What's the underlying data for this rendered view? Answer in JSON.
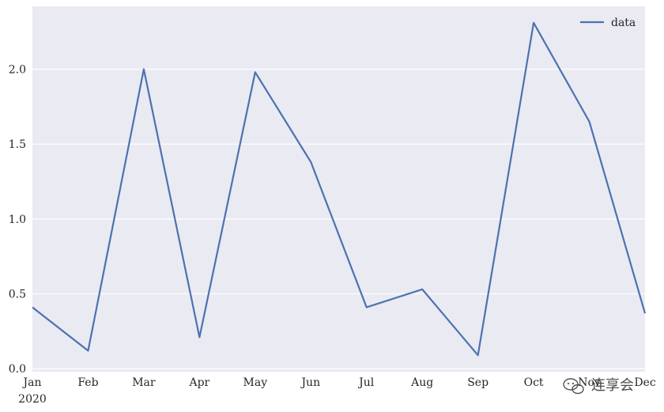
{
  "chart_data": {
    "type": "line",
    "x": [
      "Jan",
      "Feb",
      "Mar",
      "Apr",
      "May",
      "Jun",
      "Jul",
      "Aug",
      "Sep",
      "Oct",
      "Nov",
      "Dec"
    ],
    "x_year_label": "2020",
    "series": [
      {
        "name": "data",
        "color": "#4C72B0",
        "values": [
          0.41,
          0.12,
          2.0,
          0.21,
          1.98,
          1.38,
          0.41,
          0.53,
          0.09,
          2.31,
          1.65,
          0.37
        ]
      }
    ],
    "yticks": [
      "0.0",
      "0.5",
      "1.0",
      "1.5",
      "2.0"
    ],
    "ylim": [
      -0.02,
      2.42
    ],
    "grid": true,
    "legend_position": "top-right",
    "background_color": "#EAEAF2",
    "grid_color": "#FFFFFF"
  },
  "watermark": {
    "text": "连享会",
    "icon": "wechat-icon"
  }
}
